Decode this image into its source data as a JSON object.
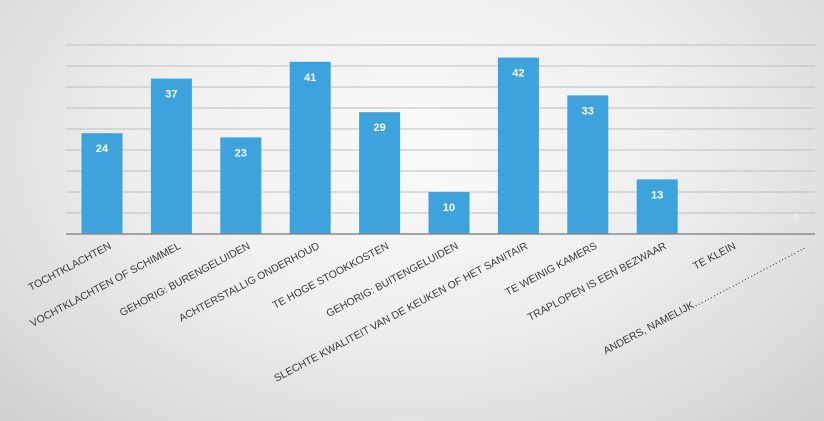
{
  "chart_data": {
    "type": "bar",
    "title": "",
    "xlabel": "",
    "ylabel": "",
    "ylim": [
      0,
      45
    ],
    "grid": true,
    "legend": "none",
    "bar_color": "#3ea3dc",
    "categories": [
      "TOCHTKLACHTEN",
      "VOCHTKLACHTEN OF SCHIMMEL",
      "GEHORIG: BURENGELUIDEN",
      "ACHTERSTALLIG ONDERHOUD",
      "TE HOGE STOOKKOSTEN",
      "GEHORIG: BUITENGELUIDEN",
      "SLECHTE KWALITEIT VAN DE KEUKEN OF HET SANITAIR",
      "TE WEINIG KAMERS",
      "TRAPLOPEN IS EEN BEZWAAR",
      "TE KLEIN",
      "ANDERS, NAMELIJK………………………………"
    ],
    "values": [
      24,
      37,
      23,
      41,
      29,
      10,
      42,
      33,
      13,
      0,
      0
    ]
  }
}
